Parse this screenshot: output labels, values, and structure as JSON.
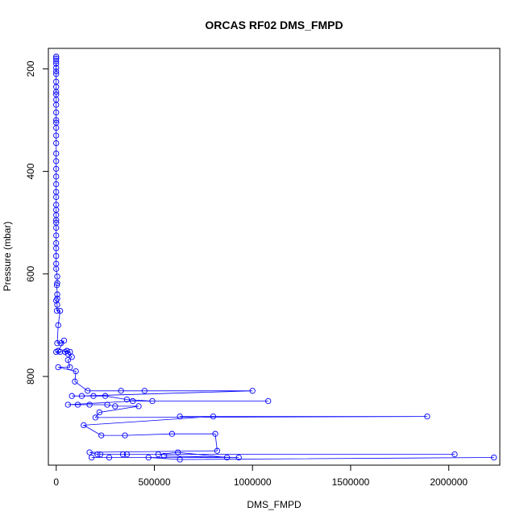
{
  "chart_data": {
    "type": "scatter",
    "title": "ORCAS RF02 DMS_FMPD",
    "xlabel": "DMS_FMPD",
    "ylabel": "Pressure (mbar)",
    "xlim": [
      -40000,
      2260000
    ],
    "ylim": [
      973,
      160
    ],
    "x_ticks": [
      0,
      500000,
      1000000,
      1500000,
      2000000
    ],
    "x_tick_labels": [
      "0",
      "500000",
      "1000000",
      "1500000",
      "2000000"
    ],
    "y_ticks": [
      200,
      400,
      600,
      800
    ],
    "y_tick_labels": [
      "200",
      "400",
      "600",
      "800"
    ],
    "grid": false,
    "series": [
      {
        "color": "#0000ff",
        "marker": "open-circle",
        "line": true,
        "points": [
          [
            0,
            176
          ],
          [
            0,
            180
          ],
          [
            0,
            185
          ],
          [
            0,
            190
          ],
          [
            0,
            198
          ],
          [
            0,
            205
          ],
          [
            0,
            210
          ],
          [
            0,
            225
          ],
          [
            0,
            235
          ],
          [
            0,
            245
          ],
          [
            0,
            250
          ],
          [
            0,
            260
          ],
          [
            0,
            270
          ],
          [
            0,
            285
          ],
          [
            0,
            300
          ],
          [
            0,
            305
          ],
          [
            0,
            315
          ],
          [
            0,
            330
          ],
          [
            0,
            345
          ],
          [
            0,
            365
          ],
          [
            0,
            380
          ],
          [
            0,
            395
          ],
          [
            0,
            410
          ],
          [
            0,
            425
          ],
          [
            0,
            440
          ],
          [
            0,
            450
          ],
          [
            0,
            465
          ],
          [
            0,
            475
          ],
          [
            0,
            485
          ],
          [
            0,
            495
          ],
          [
            0,
            500
          ],
          [
            0,
            510
          ],
          [
            0,
            525
          ],
          [
            0,
            540
          ],
          [
            0,
            550
          ],
          [
            0,
            565
          ],
          [
            0,
            580
          ],
          [
            0,
            590
          ],
          [
            5000,
            605
          ],
          [
            5000,
            618
          ],
          [
            3000,
            622
          ],
          [
            5000,
            640
          ],
          [
            5000,
            648
          ],
          [
            0,
            652
          ],
          [
            5000,
            660
          ],
          [
            3000,
            672
          ],
          [
            20000,
            672
          ],
          [
            10000,
            700
          ],
          [
            5000,
            735
          ],
          [
            25000,
            735
          ],
          [
            40000,
            730
          ],
          [
            10000,
            750
          ],
          [
            0,
            752
          ],
          [
            20000,
            752
          ],
          [
            55000,
            750
          ],
          [
            45000,
            752
          ],
          [
            70000,
            752
          ],
          [
            60000,
            756
          ],
          [
            80000,
            762
          ],
          [
            60000,
            768
          ],
          [
            70000,
            782
          ],
          [
            10000,
            782
          ],
          [
            100000,
            790
          ],
          [
            95000,
            810
          ],
          [
            160000,
            828
          ],
          [
            330000,
            828
          ],
          [
            450000,
            828
          ],
          [
            1000000,
            828
          ],
          [
            130000,
            838
          ],
          [
            80000,
            838
          ],
          [
            190000,
            838
          ],
          [
            250000,
            838
          ],
          [
            360000,
            845
          ],
          [
            490000,
            848
          ],
          [
            1080000,
            848
          ],
          [
            390000,
            848
          ],
          [
            60000,
            855
          ],
          [
            170000,
            855
          ],
          [
            110000,
            855
          ],
          [
            260000,
            855
          ],
          [
            300000,
            858
          ],
          [
            420000,
            858
          ],
          [
            220000,
            870
          ],
          [
            200000,
            880
          ],
          [
            1890000,
            878
          ],
          [
            630000,
            878
          ],
          [
            800000,
            878
          ],
          [
            140000,
            895
          ],
          [
            230000,
            915
          ],
          [
            350000,
            915
          ],
          [
            590000,
            912
          ],
          [
            810000,
            912
          ],
          [
            820000,
            945
          ],
          [
            170000,
            948
          ],
          [
            210000,
            952
          ],
          [
            225000,
            952
          ],
          [
            340000,
            952
          ],
          [
            360000,
            952
          ],
          [
            2030000,
            952
          ],
          [
            520000,
            952
          ],
          [
            620000,
            948
          ],
          [
            870000,
            958
          ],
          [
            550000,
            955
          ],
          [
            930000,
            958
          ],
          [
            180000,
            958
          ],
          [
            270000,
            958
          ],
          [
            470000,
            958
          ],
          [
            630000,
            962
          ],
          [
            2230000,
            958
          ]
        ]
      }
    ]
  }
}
